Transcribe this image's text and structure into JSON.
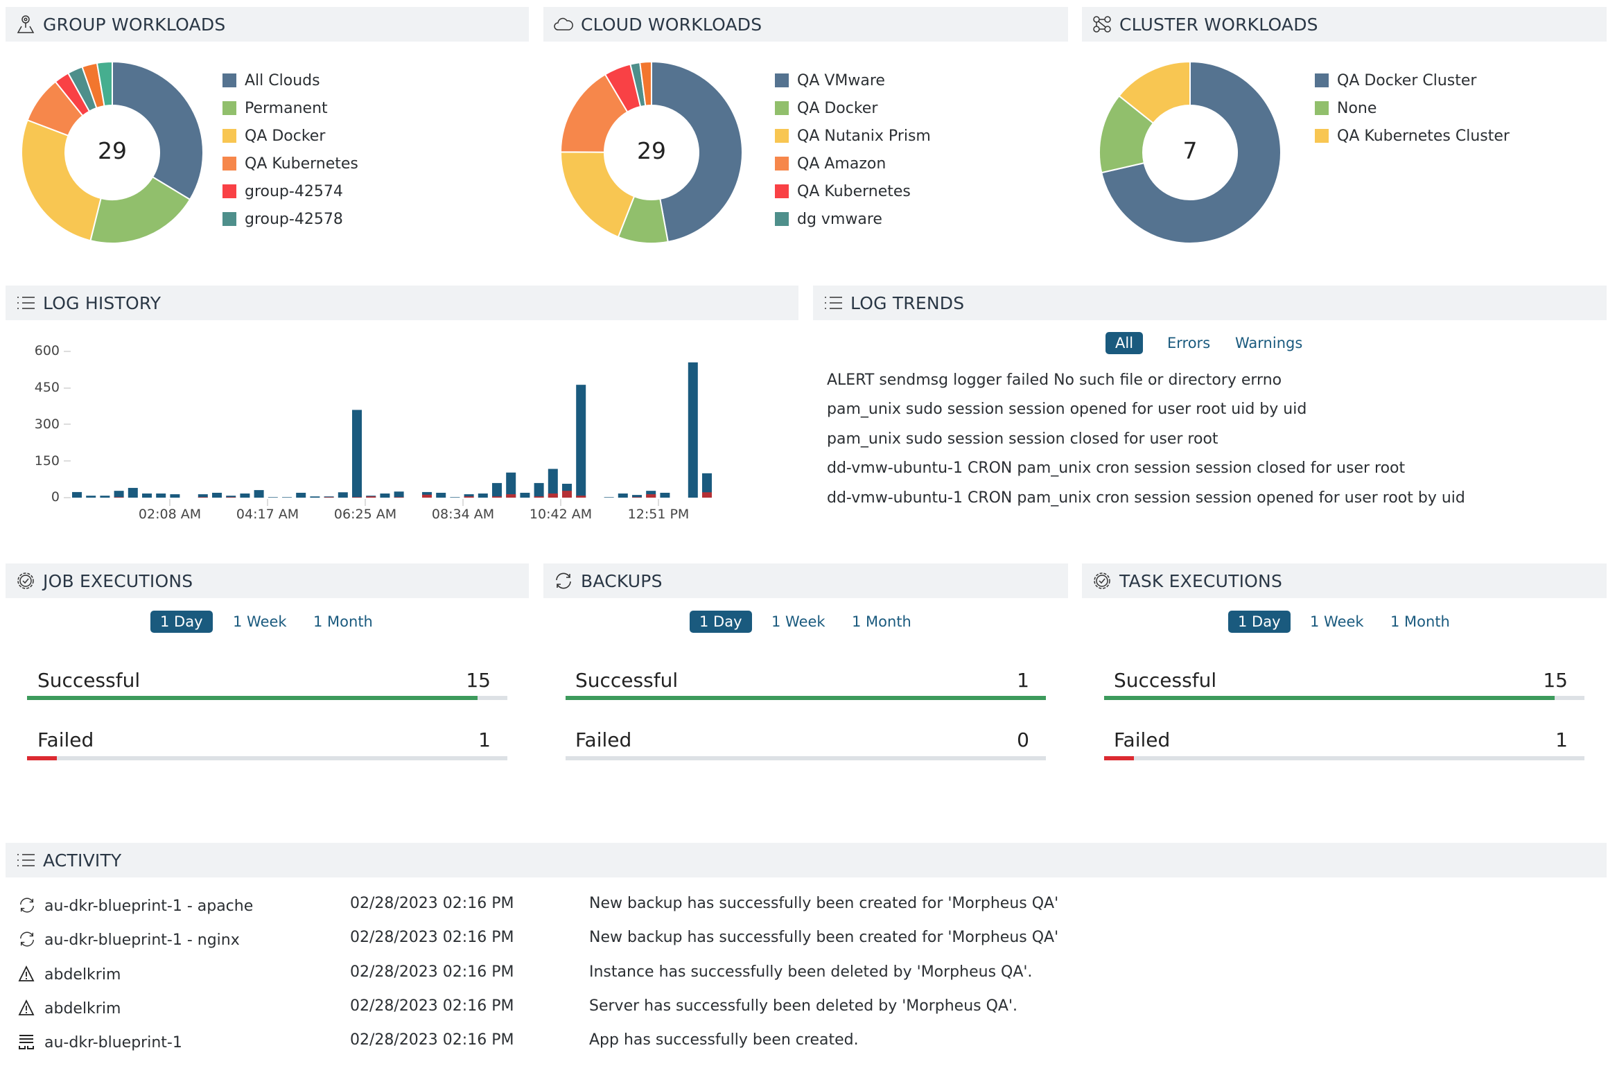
{
  "colors": {
    "accent": "#1a5a7e",
    "success": "#3d9a5c",
    "failed": "#dc2a31",
    "bar_all": "#1a5a7e",
    "bar_error": "#b53136",
    "bar_warn": "#2a3a4a"
  },
  "group_workloads": {
    "title": "GROUP WORKLOADS",
    "icon": "map-pin-icon",
    "total": "29",
    "slices": [
      {
        "label": "All Clouds",
        "value": 10,
        "color": "#557390"
      },
      {
        "label": "Permanent",
        "value": 6,
        "color": "#91bf6c"
      },
      {
        "label": "QA Docker",
        "value": 8,
        "color": "#f8c652"
      },
      {
        "label": "QA Kubernetes",
        "value": 2.5,
        "color": "#f6874b"
      },
      {
        "label": "group-42574",
        "value": 0.8,
        "color": "#f94145"
      },
      {
        "label": "group-42578",
        "value": 0.8,
        "color": "#4e8f8b"
      },
      {
        "value": 0.8,
        "color": "#f2762e"
      },
      {
        "value": 0.8,
        "color": "#46ae8f"
      }
    ]
  },
  "cloud_workloads": {
    "title": "CLOUD WORKLOADS",
    "icon": "cloud-icon",
    "total": "29",
    "slices": [
      {
        "label": "QA VMware",
        "value": 13.8,
        "color": "#557390"
      },
      {
        "label": "QA Docker",
        "value": 2.6,
        "color": "#91bf6c"
      },
      {
        "label": "QA Nutanix Prism",
        "value": 5.6,
        "color": "#f8c652"
      },
      {
        "label": "QA Amazon",
        "value": 4.8,
        "color": "#f6874b"
      },
      {
        "label": "QA Kubernetes",
        "value": 1.4,
        "color": "#f94145"
      },
      {
        "label": "dg vmware",
        "value": 0.5,
        "color": "#4e8f8b"
      },
      {
        "value": 0.6,
        "color": "#f2762e"
      }
    ]
  },
  "cluster_workloads": {
    "title": "CLUSTER WORKLOADS",
    "icon": "cluster-icon",
    "total": "7",
    "slices": [
      {
        "label": "QA Docker Cluster",
        "value": 5,
        "color": "#557390"
      },
      {
        "label": "None",
        "value": 1,
        "color": "#91bf6c"
      },
      {
        "label": "QA Kubernetes Cluster",
        "value": 1,
        "color": "#f8c652"
      }
    ]
  },
  "log_history": {
    "title": "LOG HISTORY",
    "icon": "list-icon"
  },
  "chart_data": {
    "type": "bar",
    "stacked": true,
    "ylim": [
      0,
      600
    ],
    "yticks": [
      "600",
      "450",
      "300",
      "150",
      "0"
    ],
    "xtick_labels": [
      "02:08 AM",
      "04:17 AM",
      "06:25 AM",
      "08:34 AM",
      "10:42 AM",
      "12:51 PM"
    ],
    "series": [
      {
        "values": [
          23,
          8,
          8,
          28,
          40,
          17,
          17,
          14,
          0,
          14,
          20,
          8,
          17,
          31,
          2,
          2,
          20,
          5,
          5,
          22,
          360,
          8,
          17,
          25,
          0,
          23,
          20,
          2,
          14,
          17,
          60,
          103,
          20,
          60,
          118,
          57,
          463,
          0,
          2,
          17,
          11,
          28,
          20,
          0,
          555,
          100
        ]
      },
      {
        "values": [
          0,
          0,
          0,
          2,
          0,
          0,
          0,
          0,
          0,
          2,
          0,
          2,
          0,
          0,
          0,
          0,
          0,
          0,
          2,
          0,
          2,
          5,
          0,
          2,
          0,
          12,
          0,
          0,
          5,
          0,
          5,
          14,
          0,
          5,
          17,
          28,
          8,
          0,
          0,
          0,
          2,
          14,
          0,
          0,
          0,
          22
        ]
      }
    ],
    "grid": false
  },
  "log_trends": {
    "title": "LOG TRENDS",
    "icon": "list-icon",
    "tabs": [
      "All",
      "Errors",
      "Warnings"
    ],
    "messages": [
      "ALERT sendmsg logger failed No such file or directory errno",
      "pam_unix sudo session session opened for user root uid by uid",
      "pam_unix sudo session session closed for user root",
      "dd-vmw-ubuntu-1 CRON pam_unix cron session session closed for user root",
      "dd-vmw-ubuntu-1 CRON pam_unix cron session session opened for user root by uid"
    ]
  },
  "ranges": [
    "1 Day",
    "1 Week",
    "1 Month"
  ],
  "job_executions": {
    "title": "JOB EXECUTIONS",
    "icon": "gear-check-icon",
    "successful_label": "Successful",
    "successful": "15",
    "failed_label": "Failed",
    "failed": "1",
    "success_pct": 0.9375,
    "failed_pct": 0.0625
  },
  "backups": {
    "title": "BACKUPS",
    "icon": "refresh-icon",
    "successful_label": "Successful",
    "successful": "1",
    "failed_label": "Failed",
    "failed": "0",
    "success_pct": 1,
    "failed_pct": 0
  },
  "task_executions": {
    "title": "TASK EXECUTIONS",
    "icon": "gear-check-icon",
    "successful_label": "Successful",
    "successful": "15",
    "failed_label": "Failed",
    "failed": "1",
    "success_pct": 0.9375,
    "failed_pct": 0.0625
  },
  "activity": {
    "title": "ACTIVITY",
    "icon": "list-icon",
    "rows": [
      {
        "icon": "refresh-icon",
        "name": "au-dkr-blueprint-1 - apache",
        "date": "02/28/2023 02:16 PM",
        "message": "New backup has successfully been created for 'Morpheus QA'"
      },
      {
        "icon": "refresh-icon",
        "name": "au-dkr-blueprint-1 - nginx",
        "date": "02/28/2023 02:16 PM",
        "message": "New backup has successfully been created for 'Morpheus QA'"
      },
      {
        "icon": "warning-icon",
        "name": "abdelkrim",
        "date": "02/28/2023 02:16 PM",
        "message": "Instance has successfully been deleted by 'Morpheus QA'."
      },
      {
        "icon": "warning-icon",
        "name": "abdelkrim",
        "date": "02/28/2023 02:16 PM",
        "message": "Server has successfully been deleted by 'Morpheus QA'."
      },
      {
        "icon": "app-icon",
        "name": "au-dkr-blueprint-1",
        "date": "02/28/2023 02:16 PM",
        "message": "App has successfully been created."
      }
    ]
  }
}
